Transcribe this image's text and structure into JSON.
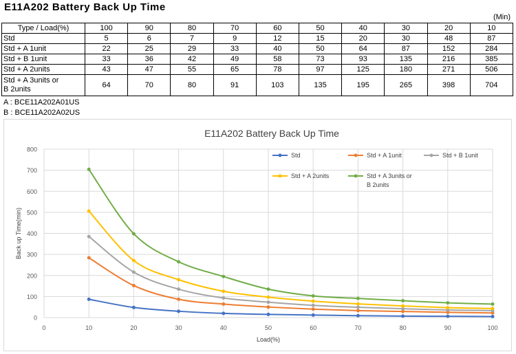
{
  "header": {
    "title": "E11A202 Battery Back Up Time",
    "unit": "(Min)"
  },
  "table": {
    "header_label": "Type / Load(%)",
    "loads": [
      "100",
      "90",
      "80",
      "70",
      "60",
      "50",
      "40",
      "30",
      "20",
      "10"
    ],
    "rows": [
      {
        "label": [
          "Std"
        ],
        "values": [
          "5",
          "6",
          "7",
          "9",
          "12",
          "15",
          "20",
          "30",
          "48",
          "87"
        ]
      },
      {
        "label": [
          "Std + A 1unit"
        ],
        "values": [
          "22",
          "25",
          "29",
          "33",
          "40",
          "50",
          "64",
          "87",
          "152",
          "284"
        ]
      },
      {
        "label": [
          "Std + B 1unit"
        ],
        "values": [
          "33",
          "36",
          "42",
          "49",
          "58",
          "73",
          "93",
          "135",
          "216",
          "385"
        ]
      },
      {
        "label": [
          "Std + A 2units"
        ],
        "values": [
          "43",
          "47",
          "55",
          "65",
          "78",
          "97",
          "125",
          "180",
          "271",
          "506"
        ]
      },
      {
        "label": [
          "Std + A 3units or",
          "B 2units"
        ],
        "values": [
          "64",
          "70",
          "80",
          "91",
          "103",
          "135",
          "195",
          "265",
          "398",
          "704"
        ]
      }
    ]
  },
  "footnotes": [
    "A : BCE11A202A01US",
    "B : BCE11A202A02US"
  ],
  "chart_data": {
    "type": "line",
    "title": "E11A202 Battery Back Up Time",
    "xlabel": "Load(%)",
    "ylabel": "Back up Time(min)",
    "xlim": [
      0,
      100
    ],
    "ylim": [
      0,
      800
    ],
    "xticks": [
      0,
      10,
      20,
      30,
      40,
      50,
      60,
      70,
      80,
      90,
      100
    ],
    "yticks": [
      0,
      100,
      200,
      300,
      400,
      500,
      600,
      700,
      800
    ],
    "grid": true,
    "legend_position": "top-right",
    "x": [
      10,
      20,
      30,
      40,
      50,
      60,
      70,
      80,
      90,
      100
    ],
    "series": [
      {
        "name": [
          "Std"
        ],
        "color": "#4472c4",
        "values": [
          87,
          48,
          30,
          20,
          15,
          12,
          9,
          7,
          6,
          5
        ]
      },
      {
        "name": [
          "Std + A 1unit"
        ],
        "color": "#ed7d31",
        "values": [
          284,
          152,
          87,
          64,
          50,
          40,
          33,
          29,
          25,
          22
        ]
      },
      {
        "name": [
          "Std + B 1unit"
        ],
        "color": "#a5a5a5",
        "values": [
          385,
          216,
          135,
          93,
          73,
          58,
          49,
          42,
          36,
          33
        ]
      },
      {
        "name": [
          "Std + A 2units"
        ],
        "color": "#ffc000",
        "values": [
          506,
          271,
          180,
          125,
          97,
          78,
          65,
          55,
          47,
          43
        ]
      },
      {
        "name": [
          "Std + A 3units or",
          "B 2units"
        ],
        "color": "#70ad47",
        "values": [
          704,
          398,
          265,
          195,
          135,
          103,
          91,
          80,
          70,
          64
        ]
      }
    ]
  }
}
